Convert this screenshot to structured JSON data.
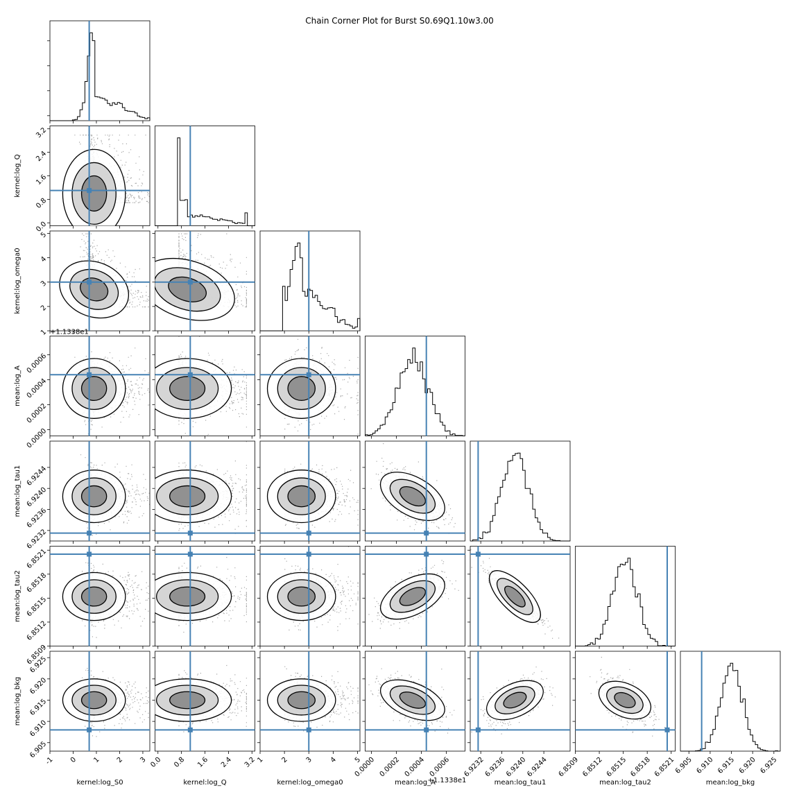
{
  "chart_data": {
    "type": "corner",
    "title": "Chain Corner Plot for Burst S0.69Q1.10w3.00",
    "truth_color": "#4682b4",
    "offset_text": "+1.1338e1",
    "parameters": [
      {
        "label": "kernel:log_S0",
        "range": [
          -1,
          3.3
        ],
        "ticks": [
          "-1",
          "0",
          "1",
          "2",
          "3"
        ],
        "tick_values": [
          -1,
          0,
          1,
          2,
          3
        ],
        "truth": 0.69,
        "peak": 0.9,
        "sigma_lo": 0.25,
        "sigma_hi": 1.1,
        "min": 0,
        "max": 3.3
      },
      {
        "label": "kernel:log_Q",
        "range": [
          -0.1,
          3.3
        ],
        "ticks": [
          "0.0",
          "0.8",
          "1.6",
          "2.4",
          "3.2"
        ],
        "tick_values": [
          0,
          0.8,
          1.6,
          2.4,
          3.2
        ],
        "truth": 1.1,
        "peak": 1.0,
        "sigma_lo": 0.4,
        "sigma_hi": 1.1,
        "min": 0.7,
        "max": 3.0
      },
      {
        "label": "kernel:log_omega0",
        "range": [
          1,
          5.1
        ],
        "ticks": [
          "1",
          "2",
          "3",
          "4",
          "5"
        ],
        "tick_values": [
          1,
          2,
          3,
          4,
          5
        ],
        "truth": 3.0,
        "peak": 2.7,
        "sigma_lo": 0.4,
        "sigma_hi": 1.0,
        "min": 2.0,
        "max": 5.0
      },
      {
        "label": "mean:log_A",
        "range": [
          -5e-05,
          0.00075
        ],
        "ticks": [
          "0.0000",
          "0.0002",
          "0.0004",
          "0.0006"
        ],
        "tick_values": [
          0,
          0.0002,
          0.0004,
          0.0006
        ],
        "truth": 0.00044,
        "peak": 0.00033,
        "sigma_lo": 0.00012,
        "sigma_hi": 0.00012,
        "min": -5e-05,
        "max": 0.00075
      },
      {
        "label": "mean:log_tau1",
        "range": [
          6.923,
          6.9249
        ],
        "ticks": [
          "6.9232",
          "6.9236",
          "6.9240",
          "6.9244"
        ],
        "tick_values": [
          6.9232,
          6.9236,
          6.924,
          6.9244
        ],
        "truth": 6.92315,
        "peak": 6.92385,
        "sigma_lo": 0.00025,
        "sigma_hi": 0.00025,
        "min": 6.923,
        "max": 6.9249
      },
      {
        "label": "mean:log_tau2",
        "range": [
          6.8509,
          6.85215
        ],
        "ticks": [
          "6.8509",
          "6.8512",
          "6.8515",
          "6.8518",
          "6.8521"
        ],
        "tick_values": [
          6.8509,
          6.8512,
          6.8515,
          6.8518,
          6.8521
        ],
        "truth": 6.85205,
        "peak": 6.85152,
        "sigma_lo": 0.00015,
        "sigma_hi": 0.00015,
        "min": 6.8509,
        "max": 6.85215
      },
      {
        "label": "mean:log_bkg",
        "range": [
          6.903,
          6.9265
        ],
        "ticks": [
          "6.905",
          "6.910",
          "6.915",
          "6.920",
          "6.925"
        ],
        "tick_values": [
          6.905,
          6.91,
          6.915,
          6.92,
          6.925
        ],
        "truth": 6.908,
        "peak": 6.915,
        "sigma_lo": 0.0025,
        "sigma_hi": 0.0025,
        "min": 6.903,
        "max": 6.9265
      }
    ],
    "correlations": [
      [
        1,
        0
      ],
      [
        2,
        0,
        -0.45
      ],
      [
        2,
        1,
        -0.35
      ],
      [
        4,
        3,
        -0.6
      ],
      [
        5,
        3,
        0.55
      ],
      [
        5,
        4,
        -0.92
      ],
      [
        6,
        3,
        -0.45
      ],
      [
        6,
        4,
        0.5
      ],
      [
        6,
        5,
        -0.5
      ]
    ]
  }
}
